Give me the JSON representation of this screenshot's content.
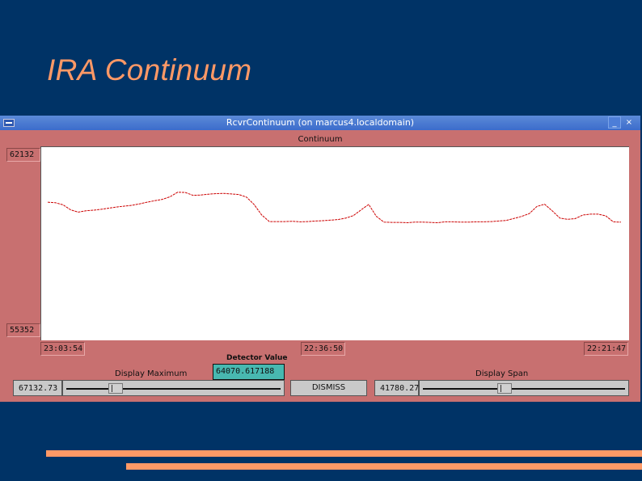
{
  "slide": {
    "title": "IRA Continuum"
  },
  "window": {
    "title": "RcvrContinuum (on marcus4.localdomain)",
    "minimize_label": "_",
    "close_label": "×"
  },
  "chart_panel": {
    "title": "Continuum",
    "y_max_label": "62132",
    "y_min_label": "55352",
    "x_start_label": "23:03:54",
    "x_mid_label": "22:36:50",
    "x_end_label": "22:21:47"
  },
  "chart_data": {
    "type": "line",
    "title": "Continuum",
    "ylim": [
      55352,
      62132
    ],
    "x_tick_labels": [
      "23:03:54",
      "22:36:50",
      "22:21:47"
    ],
    "line_color": "#cc0000",
    "series": [
      {
        "values": [
          60200,
          60180,
          60110,
          59930,
          59850,
          59900,
          59920,
          59950,
          59990,
          60030,
          60060,
          60090,
          60140,
          60200,
          60250,
          60300,
          60390,
          60550,
          60540,
          60440,
          60450,
          60480,
          60500,
          60510,
          60490,
          60470,
          60380,
          60120,
          59750,
          59520,
          59520,
          59520,
          59530,
          59510,
          59520,
          59540,
          59550,
          59570,
          59590,
          59640,
          59730,
          59930,
          60120,
          59700,
          59500,
          59490,
          59490,
          59480,
          59500,
          59500,
          59490,
          59480,
          59510,
          59510,
          59500,
          59500,
          59510,
          59510,
          59520,
          59540,
          59560,
          59630,
          59700,
          59800,
          60050,
          60130,
          59900,
          59640,
          59600,
          59620,
          59750,
          59780,
          59780,
          59720,
          59510,
          59500
        ]
      }
    ]
  },
  "controls": {
    "detector_label": "Detector Value",
    "detector_value": "64070.617188",
    "display_max_label": "Display Maximum",
    "display_max_value": "67132.73",
    "display_max_level": 0.22,
    "dismiss_label": "DISMISS",
    "display_span_label": "Display Span",
    "display_span_value": "41780.27",
    "display_span_level": 0.4
  }
}
